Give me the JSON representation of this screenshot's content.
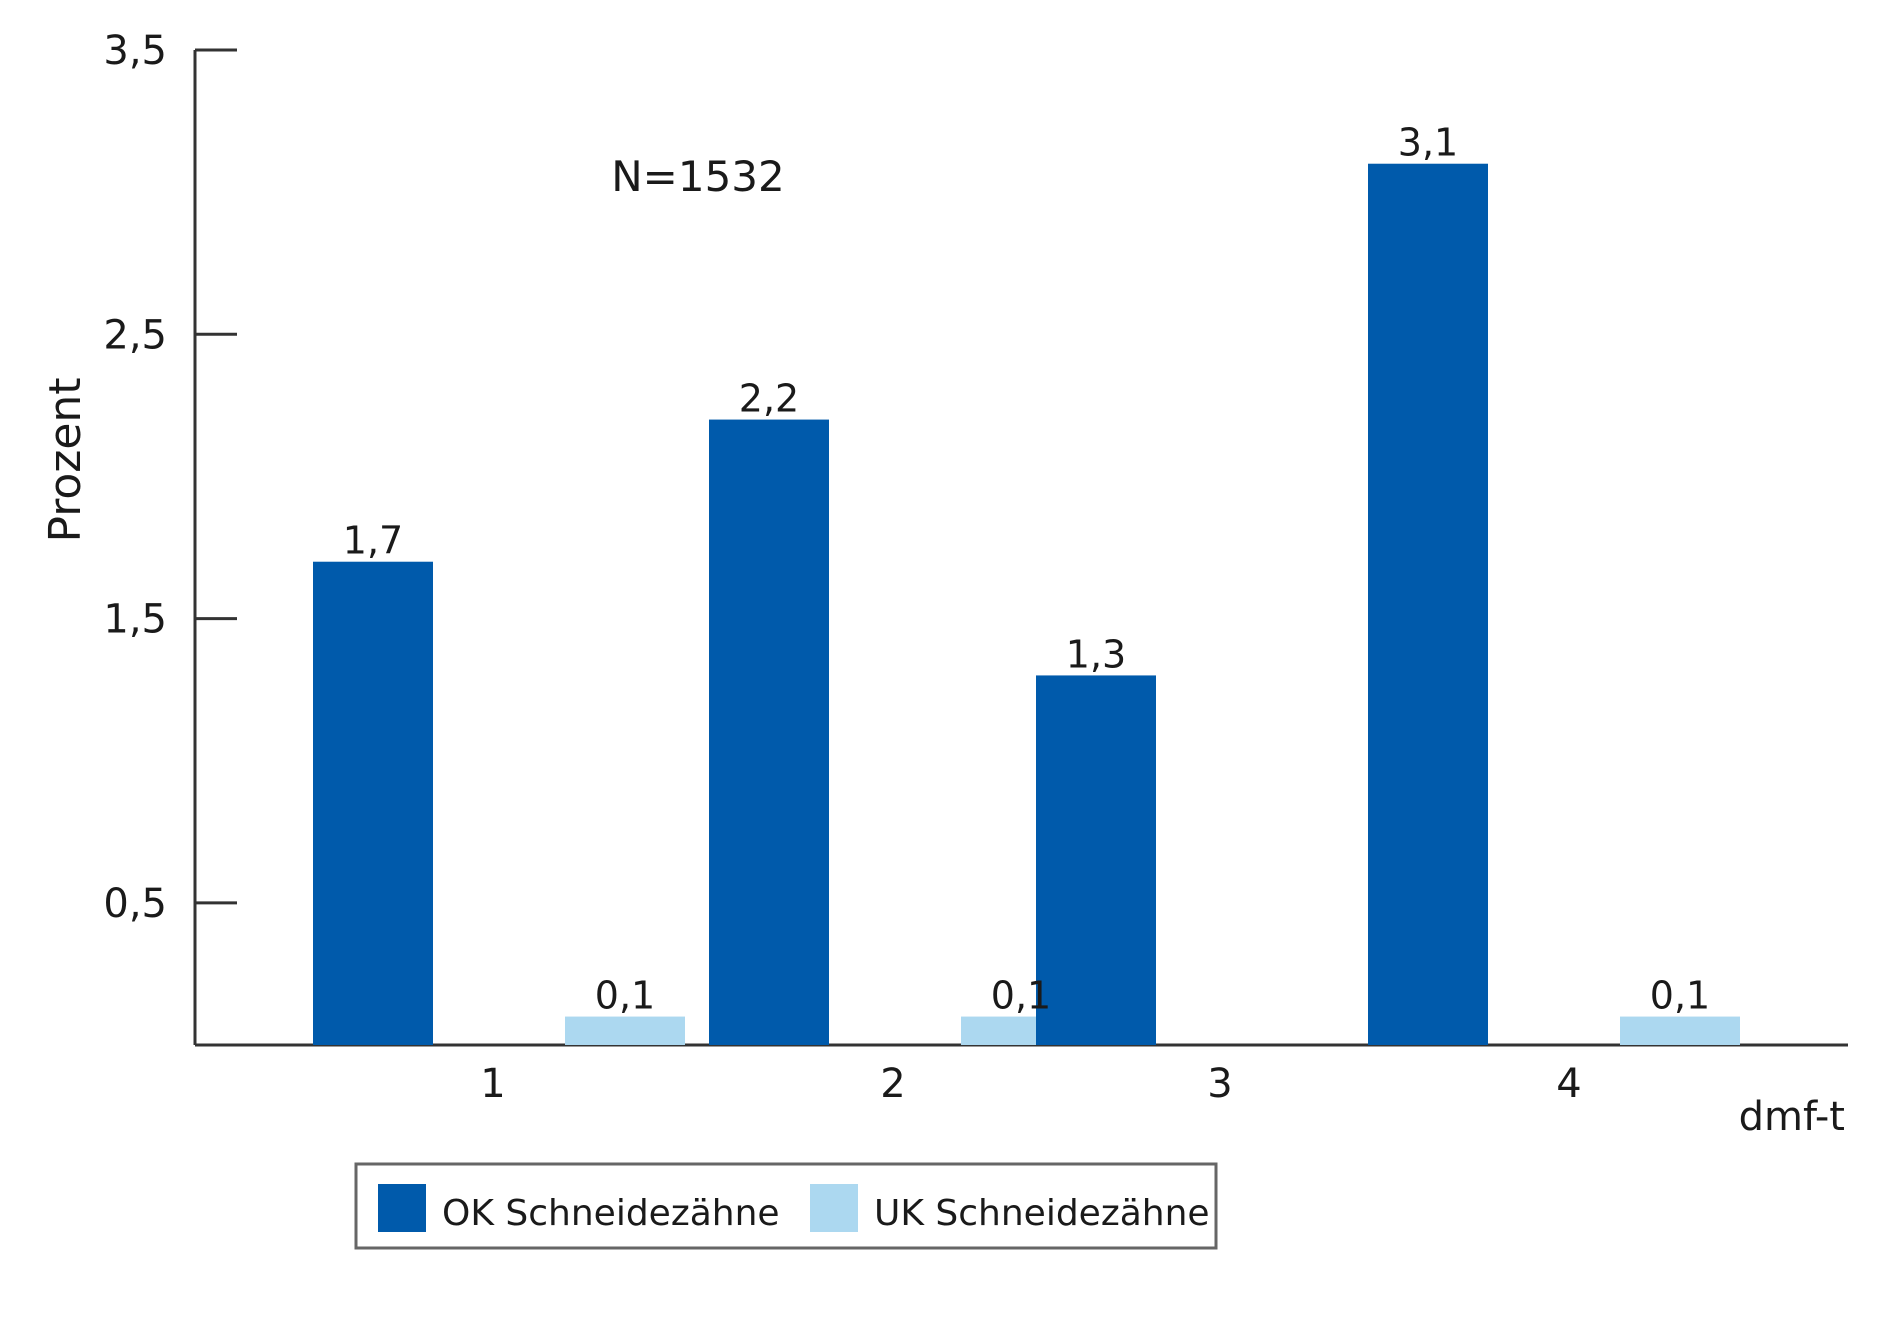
{
  "chart_data": {
    "type": "bar",
    "title": "",
    "annotation": "N=1532",
    "xlabel": "dmf-t",
    "ylabel": "Prozent",
    "categories": [
      "1",
      "2",
      "3",
      "4"
    ],
    "series": [
      {
        "name": "OK Schneidezähne",
        "color": "#005aab",
        "values": [
          1.7,
          2.2,
          1.3,
          3.1
        ],
        "labels": [
          "1,7",
          "2,2",
          "1,3",
          "3,1"
        ]
      },
      {
        "name": "UK Schneidezähne",
        "color": "#acd8f0",
        "values": [
          0.1,
          0.1,
          null,
          0.1
        ],
        "labels": [
          "0,1",
          "0,1",
          "",
          "0,1"
        ]
      }
    ],
    "yticks": [
      0.5,
      1.5,
      2.5,
      3.5
    ],
    "ytick_labels": [
      "0,5",
      "1,5",
      "2,5",
      "3,5"
    ],
    "ylim": [
      0,
      3.5
    ],
    "grid": false,
    "legend_position": "bottom-left"
  }
}
